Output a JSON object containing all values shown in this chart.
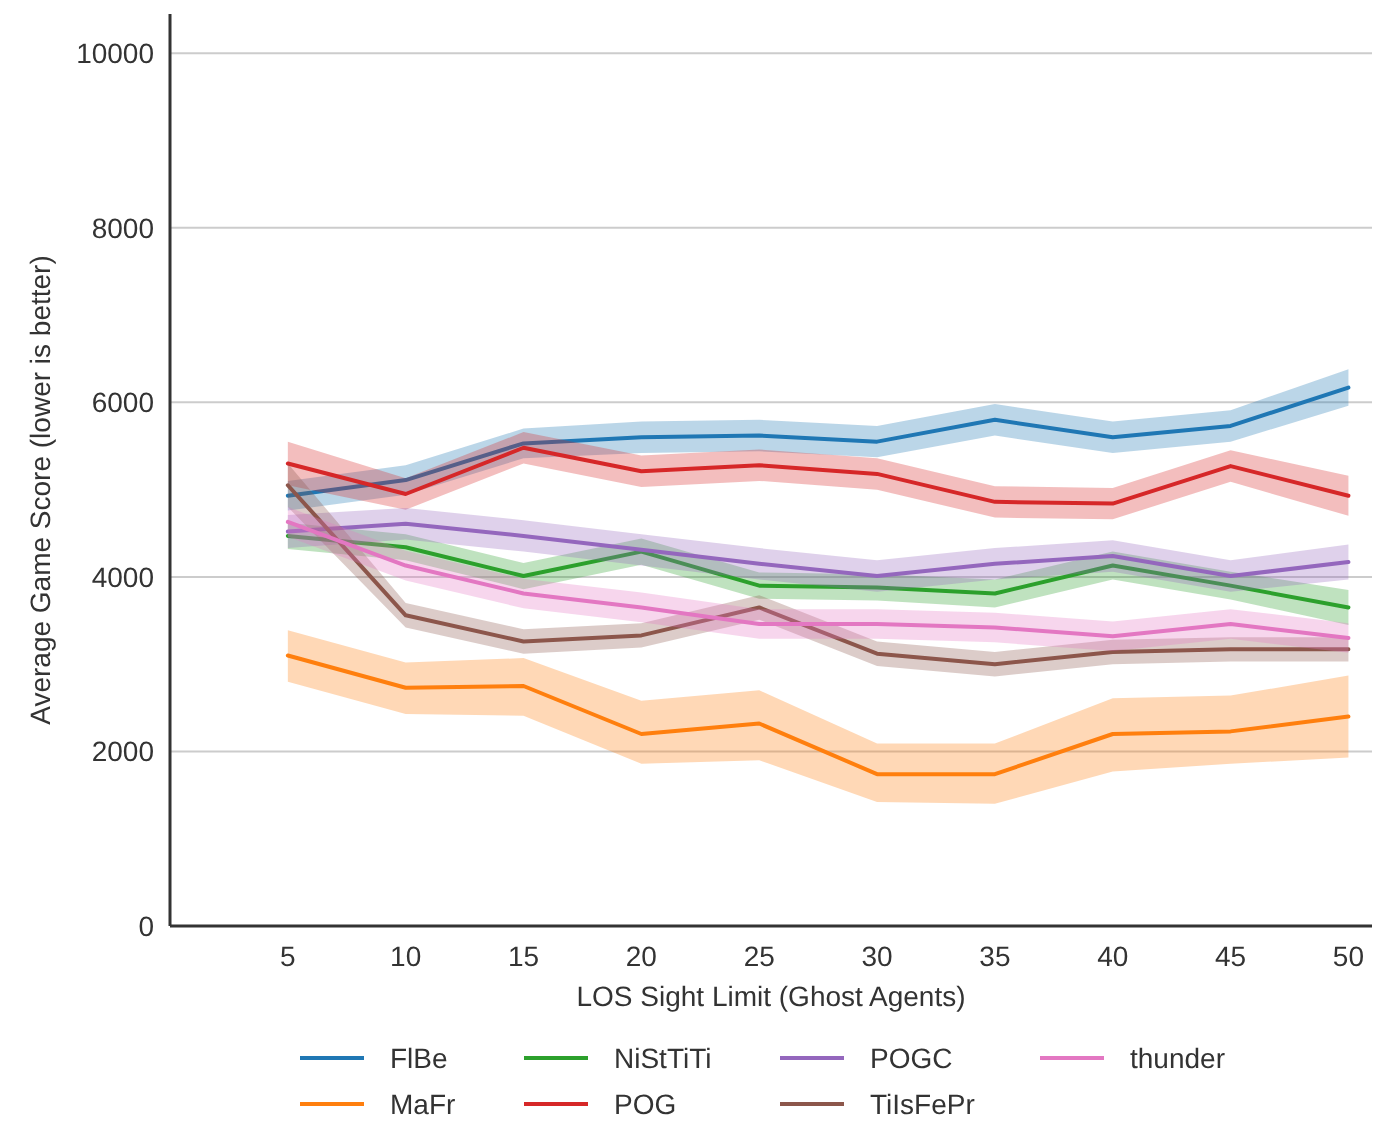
{
  "chart_data": {
    "type": "line",
    "xlabel": "LOS Sight Limit (Ghost Agents)",
    "ylabel": "Average Game Score (lower is better)",
    "x": [
      5,
      10,
      15,
      20,
      25,
      30,
      35,
      40,
      45,
      50
    ],
    "xlim": [
      0,
      51
    ],
    "xticks": [
      5,
      10,
      15,
      20,
      25,
      30,
      35,
      40,
      45,
      50
    ],
    "ylim": [
      0,
      10450
    ],
    "yticks": [
      0,
      2000,
      4000,
      6000,
      8000,
      10000
    ],
    "grid": "y",
    "legend": "bottom",
    "line_style": "solid",
    "marker": "none",
    "series": [
      {
        "name": "FlBe",
        "color": "#1f77b4",
        "values": [
          4930,
          5110,
          5530,
          5600,
          5620,
          5550,
          5800,
          5600,
          5730,
          6170
        ],
        "lower": [
          4760,
          4940,
          5360,
          5420,
          5440,
          5370,
          5620,
          5420,
          5550,
          5960
        ],
        "upper": [
          5100,
          5280,
          5700,
          5780,
          5800,
          5730,
          5980,
          5780,
          5910,
          6380
        ]
      },
      {
        "name": "MaFr",
        "color": "#ff7f0e",
        "values": [
          3100,
          2730,
          2750,
          2200,
          2320,
          1740,
          1740,
          2200,
          2230,
          2400
        ],
        "lower": [
          2800,
          2430,
          2410,
          1860,
          1900,
          1420,
          1400,
          1770,
          1860,
          1930
        ],
        "upper": [
          3390,
          3020,
          3070,
          2580,
          2700,
          2090,
          2090,
          2610,
          2640,
          2870
        ]
      },
      {
        "name": "NiStTiTi",
        "color": "#2ca02c",
        "values": [
          4470,
          4340,
          4010,
          4290,
          3900,
          3880,
          3810,
          4130,
          3900,
          3650
        ],
        "lower": [
          4320,
          4190,
          3860,
          4140,
          3750,
          3730,
          3650,
          3970,
          3740,
          3450
        ],
        "upper": [
          4620,
          4490,
          4160,
          4440,
          4050,
          4030,
          3970,
          4290,
          4060,
          3850
        ]
      },
      {
        "name": "POG",
        "color": "#d62728",
        "values": [
          5300,
          4950,
          5480,
          5210,
          5280,
          5180,
          4860,
          4840,
          5270,
          4930
        ],
        "lower": [
          5050,
          4770,
          5300,
          5030,
          5100,
          5000,
          4680,
          4660,
          5090,
          4700
        ],
        "upper": [
          5550,
          5130,
          5660,
          5390,
          5460,
          5360,
          5040,
          5020,
          5450,
          5160
        ]
      },
      {
        "name": "POGC",
        "color": "#9467bd",
        "values": [
          4520,
          4610,
          4470,
          4310,
          4150,
          4010,
          4150,
          4240,
          4010,
          4170
        ],
        "lower": [
          4330,
          4430,
          4290,
          4130,
          3970,
          3830,
          3970,
          4060,
          3830,
          3970
        ],
        "upper": [
          4710,
          4790,
          4650,
          4490,
          4330,
          4190,
          4330,
          4420,
          4190,
          4370
        ]
      },
      {
        "name": "TiIsFePr",
        "color": "#8c564b",
        "values": [
          5050,
          3560,
          3260,
          3330,
          3650,
          3120,
          3000,
          3140,
          3170,
          3170
        ],
        "lower": [
          4800,
          3420,
          3120,
          3190,
          3510,
          2980,
          2860,
          3000,
          3030,
          3030
        ],
        "upper": [
          5300,
          3700,
          3400,
          3470,
          3790,
          3260,
          3140,
          3280,
          3310,
          3310
        ]
      },
      {
        "name": "thunder",
        "color": "#e377c2",
        "values": [
          4630,
          4130,
          3810,
          3650,
          3460,
          3460,
          3420,
          3320,
          3460,
          3300
        ],
        "lower": [
          4460,
          3960,
          3640,
          3480,
          3290,
          3290,
          3250,
          3150,
          3290,
          3130
        ],
        "upper": [
          4800,
          4300,
          3980,
          3820,
          3630,
          3630,
          3590,
          3490,
          3630,
          3470
        ]
      }
    ]
  }
}
